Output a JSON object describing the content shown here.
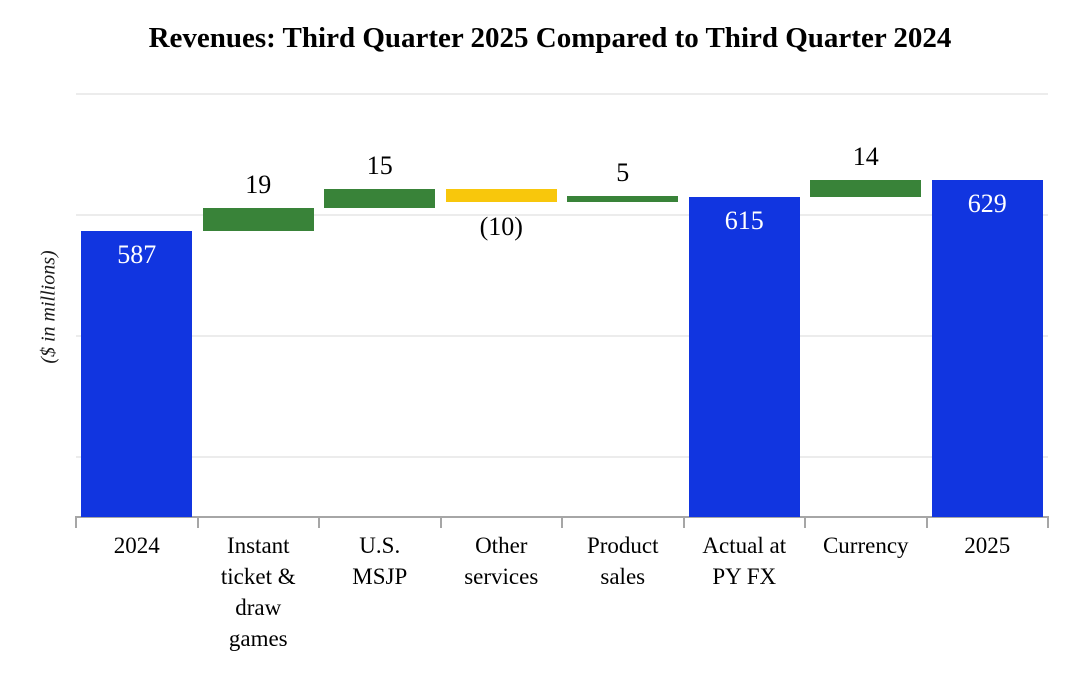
{
  "title": "Revenues: Third Quarter 2025 Compared to Third Quarter 2024",
  "chart_data": {
    "type": "bar",
    "subtype": "waterfall",
    "title": "Revenues: Third Quarter 2025 Compared to Third Quarter 2024",
    "xlabel": "",
    "ylabel": "($ in millions)",
    "ylim": [
      350,
      700
    ],
    "gridline_step": 100,
    "grid": true,
    "legend": "none",
    "y_tick_labels_visible": false,
    "categories": [
      "2024",
      "Instant ticket & draw games",
      "U.S. MSJP",
      "Other services",
      "Product sales",
      "Actual at PY FX",
      "Currency",
      "2025"
    ],
    "bars": [
      {
        "category": "2024",
        "axis_label": "2024",
        "kind": "total",
        "value": 587,
        "label": "587",
        "color_key": "total",
        "label_position": "inside-top"
      },
      {
        "category": "Instant ticket & draw games",
        "axis_label": "Instant\nticket &\ndraw\ngames",
        "kind": "delta",
        "value": 19,
        "label": "19",
        "color_key": "increase",
        "label_position": "above"
      },
      {
        "category": "U.S. MSJP",
        "axis_label": "U.S.\nMSJP",
        "kind": "delta",
        "value": 15,
        "label": "15",
        "color_key": "increase",
        "label_position": "above"
      },
      {
        "category": "Other services",
        "axis_label": "Other\nservices",
        "kind": "delta",
        "value": -10,
        "label": "(10)",
        "color_key": "decrease",
        "label_position": "below"
      },
      {
        "category": "Product sales",
        "axis_label": "Product\nsales",
        "kind": "delta",
        "value": 5,
        "label": "5",
        "color_key": "increase",
        "label_position": "above"
      },
      {
        "category": "Actual at PY FX",
        "axis_label": "Actual at\nPY FX",
        "kind": "total",
        "value": 615,
        "label": "615",
        "color_key": "total",
        "label_position": "inside-top"
      },
      {
        "category": "Currency",
        "axis_label": "Currency",
        "kind": "delta",
        "value": 14,
        "label": "14",
        "color_key": "increase",
        "label_position": "above"
      },
      {
        "category": "2025",
        "axis_label": "2025",
        "kind": "total",
        "value": 629,
        "label": "629",
        "color_key": "total",
        "label_position": "inside-top"
      }
    ],
    "colors": {
      "total": "#1135e0",
      "increase": "#398339",
      "decrease": "#f8c70c"
    },
    "axis_color": "#a6a6a6",
    "gridline_color": "#ececec"
  }
}
